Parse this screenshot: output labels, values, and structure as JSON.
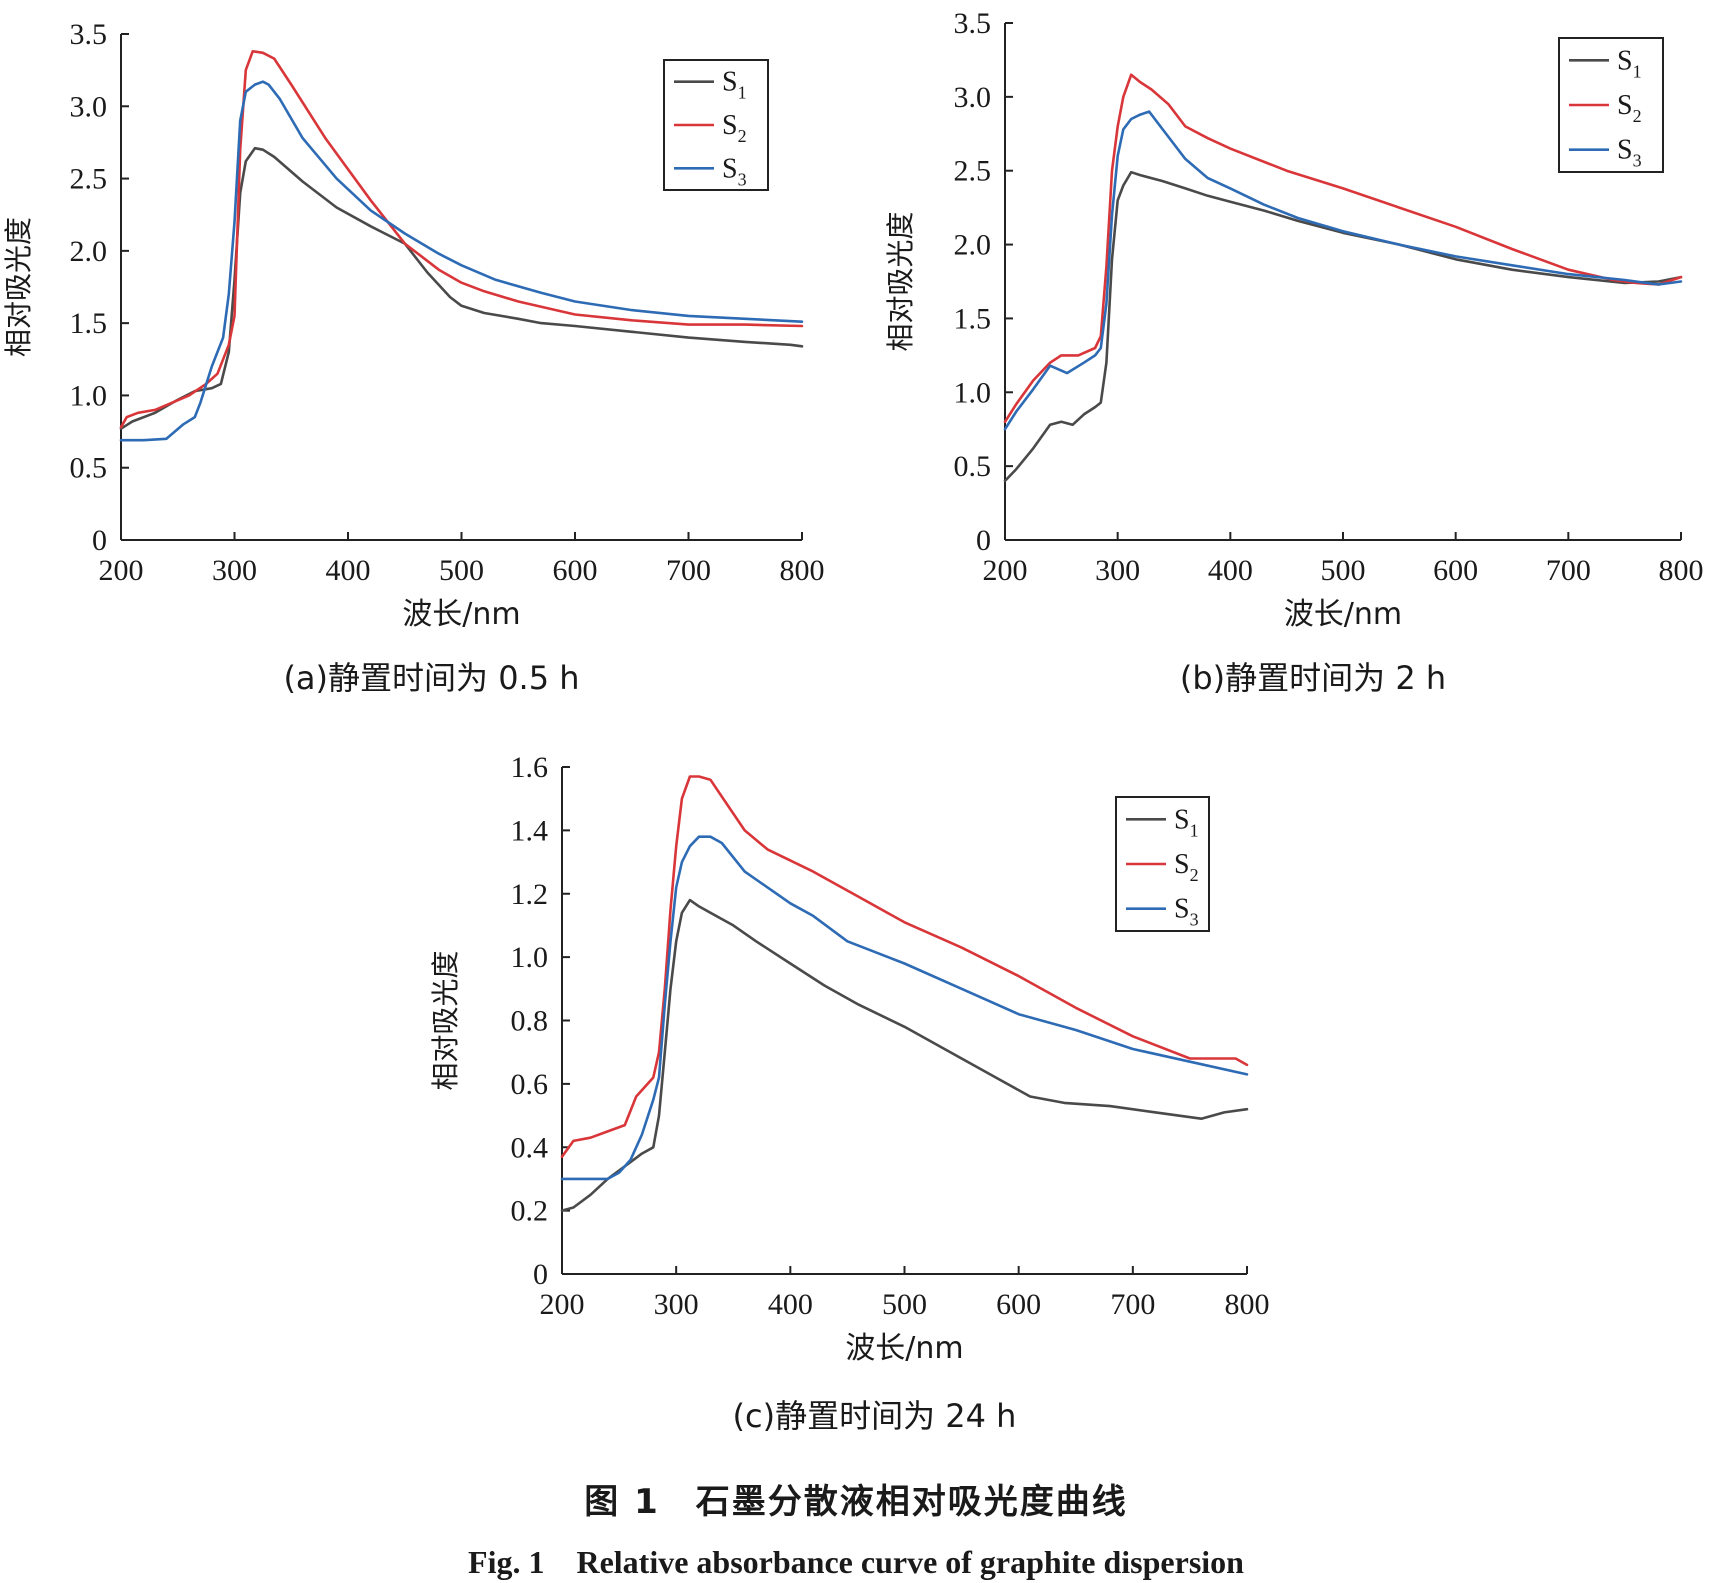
{
  "figure": {
    "caption_cn": "图 1　石墨分散液相对吸光度曲线",
    "caption_en": "Fig. 1　Relative absorbance curve of graphite dispersion"
  },
  "colors": {
    "S1": "#4a4a4a",
    "S2": "#d9363a",
    "S3": "#2e6bb5"
  },
  "chart_data": [
    {
      "id": "a",
      "type": "line",
      "caption": "(a)静置时间为 0.5 h",
      "xlabel": "波长/nm",
      "ylabel": "相对吸光度",
      "xlim": [
        200,
        800
      ],
      "ylim": [
        0,
        3.5
      ],
      "xticks": [
        200,
        300,
        400,
        500,
        600,
        700,
        800
      ],
      "xtick_labels": [
        "200",
        "300",
        "400",
        "500",
        "600",
        "700",
        "800"
      ],
      "yticks": [
        0,
        0.5,
        1.0,
        1.5,
        2.0,
        2.5,
        3.0,
        3.5
      ],
      "ytick_labels": [
        "0",
        "0.5",
        "1.0",
        "1.5",
        "2.0",
        "2.5",
        "3.0",
        "3.5"
      ],
      "grid": false,
      "legend": "top-right",
      "series": [
        {
          "name": "S1",
          "x": [
            200,
            210,
            230,
            250,
            265,
            280,
            288,
            295,
            300,
            305,
            310,
            318,
            325,
            335,
            360,
            390,
            420,
            450,
            470,
            490,
            500,
            520,
            550,
            570,
            600,
            650,
            700,
            750,
            790,
            800
          ],
          "y": [
            0.77,
            0.82,
            0.88,
            0.97,
            1.03,
            1.05,
            1.08,
            1.3,
            1.8,
            2.4,
            2.62,
            2.71,
            2.7,
            2.65,
            2.48,
            2.3,
            2.17,
            2.05,
            1.85,
            1.68,
            1.62,
            1.57,
            1.53,
            1.5,
            1.48,
            1.44,
            1.4,
            1.37,
            1.35,
            1.34
          ]
        },
        {
          "name": "S2",
          "x": [
            200,
            205,
            215,
            230,
            245,
            260,
            275,
            285,
            295,
            300,
            305,
            310,
            316,
            325,
            335,
            350,
            380,
            420,
            450,
            480,
            500,
            520,
            550,
            600,
            650,
            700,
            750,
            800
          ],
          "y": [
            0.78,
            0.85,
            0.88,
            0.9,
            0.95,
            1.0,
            1.08,
            1.15,
            1.35,
            1.55,
            2.7,
            3.25,
            3.38,
            3.37,
            3.33,
            3.15,
            2.78,
            2.35,
            2.05,
            1.87,
            1.78,
            1.72,
            1.65,
            1.56,
            1.52,
            1.49,
            1.49,
            1.48
          ]
        },
        {
          "name": "S3",
          "x": [
            200,
            220,
            240,
            255,
            265,
            270,
            280,
            290,
            295,
            300,
            305,
            310,
            318,
            325,
            330,
            340,
            360,
            390,
            420,
            450,
            480,
            500,
            530,
            570,
            600,
            650,
            700,
            750,
            800
          ],
          "y": [
            0.69,
            0.69,
            0.7,
            0.8,
            0.85,
            0.95,
            1.2,
            1.4,
            1.7,
            2.2,
            2.9,
            3.1,
            3.15,
            3.17,
            3.15,
            3.05,
            2.78,
            2.5,
            2.28,
            2.12,
            1.98,
            1.9,
            1.8,
            1.71,
            1.65,
            1.59,
            1.55,
            1.53,
            1.51
          ]
        }
      ]
    },
    {
      "id": "b",
      "type": "line",
      "caption": "(b)静置时间为 2 h",
      "xlabel": "波长/nm",
      "ylabel": "相对吸光度",
      "xlim": [
        200,
        800
      ],
      "ylim": [
        0,
        3.5
      ],
      "xticks": [
        200,
        300,
        400,
        500,
        600,
        700,
        800
      ],
      "xtick_labels": [
        "200",
        "300",
        "400",
        "500",
        "600",
        "700",
        "800"
      ],
      "yticks": [
        0,
        0.5,
        1.0,
        1.5,
        2.0,
        2.5,
        3.0,
        3.5
      ],
      "ytick_labels": [
        "0",
        "0.5",
        "1.0",
        "1.5",
        "2.0",
        "2.5",
        "3.0",
        "3.5"
      ],
      "grid": false,
      "legend": "top-right",
      "series": [
        {
          "name": "S1",
          "x": [
            200,
            210,
            225,
            240,
            250,
            260,
            270,
            280,
            285,
            290,
            295,
            300,
            305,
            312,
            320,
            340,
            360,
            380,
            400,
            430,
            460,
            500,
            550,
            600,
            650,
            700,
            750,
            780,
            800
          ],
          "y": [
            0.4,
            0.48,
            0.62,
            0.78,
            0.8,
            0.78,
            0.85,
            0.9,
            0.93,
            1.2,
            1.9,
            2.3,
            2.4,
            2.49,
            2.47,
            2.43,
            2.38,
            2.33,
            2.29,
            2.23,
            2.16,
            2.08,
            2.0,
            1.9,
            1.83,
            1.78,
            1.74,
            1.75,
            1.78
          ]
        },
        {
          "name": "S2",
          "x": [
            200,
            210,
            225,
            240,
            250,
            265,
            280,
            285,
            290,
            295,
            300,
            305,
            312,
            320,
            330,
            345,
            360,
            380,
            400,
            450,
            500,
            550,
            600,
            650,
            700,
            740,
            760,
            780,
            800
          ],
          "y": [
            0.8,
            0.92,
            1.08,
            1.2,
            1.25,
            1.25,
            1.3,
            1.38,
            1.85,
            2.5,
            2.8,
            3.0,
            3.15,
            3.1,
            3.05,
            2.95,
            2.8,
            2.72,
            2.65,
            2.5,
            2.38,
            2.25,
            2.12,
            1.97,
            1.83,
            1.76,
            1.74,
            1.73,
            1.78
          ]
        },
        {
          "name": "S3",
          "x": [
            200,
            210,
            225,
            240,
            255,
            270,
            280,
            285,
            290,
            295,
            300,
            305,
            312,
            320,
            328,
            340,
            360,
            380,
            400,
            430,
            460,
            500,
            550,
            600,
            650,
            700,
            750,
            780,
            800
          ],
          "y": [
            0.75,
            0.87,
            1.02,
            1.18,
            1.13,
            1.2,
            1.25,
            1.3,
            1.6,
            2.2,
            2.6,
            2.78,
            2.85,
            2.88,
            2.9,
            2.78,
            2.58,
            2.45,
            2.38,
            2.27,
            2.18,
            2.09,
            2.0,
            1.92,
            1.86,
            1.8,
            1.76,
            1.73,
            1.75
          ]
        }
      ]
    },
    {
      "id": "c",
      "type": "line",
      "caption": "(c)静置时间为 24 h",
      "xlabel": "波长/nm",
      "ylabel": "相对吸光度",
      "xlim": [
        200,
        800
      ],
      "ylim": [
        0,
        1.6
      ],
      "xticks": [
        200,
        300,
        400,
        500,
        600,
        700,
        800
      ],
      "xtick_labels": [
        "200",
        "300",
        "400",
        "500",
        "600",
        "700",
        "800"
      ],
      "yticks": [
        0,
        0.2,
        0.4,
        0.6,
        0.8,
        1.0,
        1.2,
        1.4,
        1.6
      ],
      "ytick_labels": [
        "0",
        "0.2",
        "0.4",
        "0.6",
        "0.8",
        "1.0",
        "1.2",
        "1.4",
        "1.6"
      ],
      "grid": false,
      "legend": "top-right",
      "series": [
        {
          "name": "S1",
          "x": [
            200,
            210,
            225,
            240,
            255,
            270,
            280,
            285,
            290,
            295,
            300,
            305,
            312,
            320,
            330,
            350,
            370,
            400,
            430,
            460,
            500,
            550,
            580,
            610,
            640,
            680,
            720,
            760,
            780,
            800
          ],
          "y": [
            0.2,
            0.21,
            0.25,
            0.3,
            0.34,
            0.38,
            0.4,
            0.5,
            0.7,
            0.9,
            1.05,
            1.14,
            1.18,
            1.16,
            1.14,
            1.1,
            1.05,
            0.98,
            0.91,
            0.85,
            0.78,
            0.68,
            0.62,
            0.56,
            0.54,
            0.53,
            0.51,
            0.49,
            0.51,
            0.52
          ]
        },
        {
          "name": "S2",
          "x": [
            200,
            210,
            225,
            240,
            255,
            265,
            275,
            280,
            285,
            290,
            295,
            300,
            305,
            312,
            320,
            330,
            345,
            360,
            380,
            420,
            460,
            500,
            550,
            600,
            650,
            700,
            750,
            790,
            800
          ],
          "y": [
            0.37,
            0.42,
            0.43,
            0.45,
            0.47,
            0.56,
            0.6,
            0.62,
            0.7,
            0.9,
            1.15,
            1.35,
            1.5,
            1.57,
            1.57,
            1.56,
            1.48,
            1.4,
            1.34,
            1.27,
            1.19,
            1.11,
            1.03,
            0.94,
            0.84,
            0.75,
            0.68,
            0.68,
            0.66
          ]
        },
        {
          "name": "S3",
          "x": [
            200,
            220,
            240,
            250,
            260,
            270,
            280,
            285,
            290,
            295,
            300,
            305,
            312,
            320,
            330,
            340,
            360,
            380,
            400,
            420,
            450,
            500,
            550,
            600,
            650,
            700,
            750,
            800
          ],
          "y": [
            0.3,
            0.3,
            0.3,
            0.32,
            0.36,
            0.44,
            0.55,
            0.62,
            0.85,
            1.05,
            1.22,
            1.3,
            1.35,
            1.38,
            1.38,
            1.36,
            1.27,
            1.22,
            1.17,
            1.13,
            1.05,
            0.98,
            0.9,
            0.82,
            0.77,
            0.71,
            0.67,
            0.63
          ]
        }
      ]
    }
  ]
}
